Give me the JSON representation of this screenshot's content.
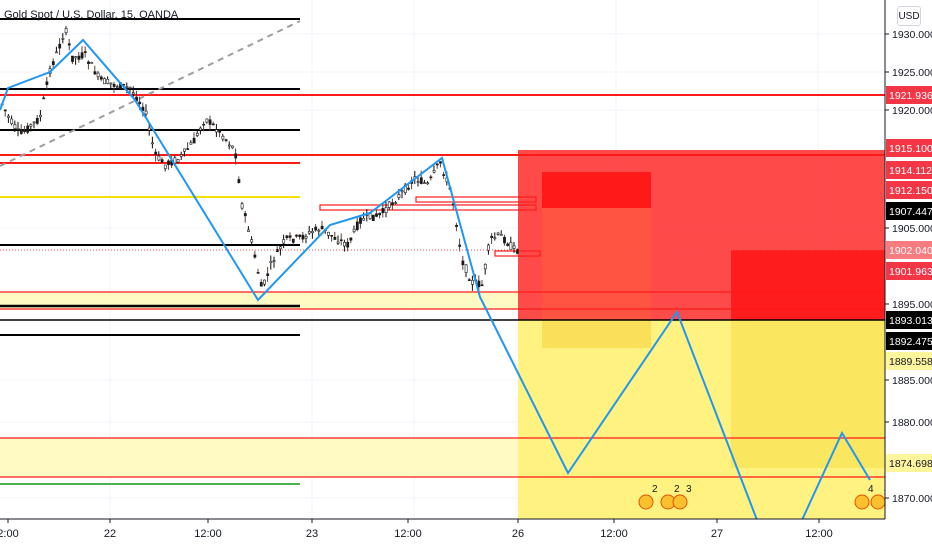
{
  "chart": {
    "title": "Gold Spot / U.S. Dollar, 15, OANDA",
    "currency_button": "USD"
  },
  "colors": {
    "red": "#ff1a1a",
    "black": "#000000",
    "yellow": "#f5e000",
    "green": "#4caf50",
    "blue": "#2196f3",
    "gray_dash": "#9e9e9e",
    "red_zone": "#ff2a2a",
    "yellow_zone": "#fff176"
  },
  "price_axis": {
    "ticks": [
      "1930.000",
      "1925.000",
      "1920.000",
      "1905.000",
      "1895.000",
      "1885.000",
      "1880.000",
      "1870.000"
    ],
    "tags": [
      {
        "label": "1921.936",
        "bg": "#f23645",
        "fg": "#ffffff"
      },
      {
        "label": "1915.100",
        "bg": "#f23645",
        "fg": "#ffffff"
      },
      {
        "label": "1914.112",
        "bg": "#f23645",
        "fg": "#ffffff"
      },
      {
        "label": "1912.150",
        "bg": "#f23645",
        "fg": "#ffffff"
      },
      {
        "label": "1907.447",
        "bg": "#000000",
        "fg": "#ffffff"
      },
      {
        "label": "1902.040",
        "bg": "#f77c80",
        "fg": "#ffffff"
      },
      {
        "label": "1901.963",
        "bg": "#f23645",
        "fg": "#ffffff"
      },
      {
        "label": "1893.013",
        "bg": "#000000",
        "fg": "#ffffff"
      },
      {
        "label": "1892.475",
        "bg": "#000000",
        "fg": "#ffffff"
      },
      {
        "label": "1889.558",
        "bg": "#fff59d",
        "fg": "#131722"
      },
      {
        "label": "1874.698",
        "bg": "#fff59d",
        "fg": "#131722"
      }
    ]
  },
  "time_axis": {
    "labels": [
      "2:00",
      "22",
      "12:00",
      "23",
      "12:00",
      "26",
      "12:00",
      "27",
      "12:00"
    ]
  },
  "event_badges": [
    "2",
    "2",
    "3",
    "4",
    "4"
  ]
}
